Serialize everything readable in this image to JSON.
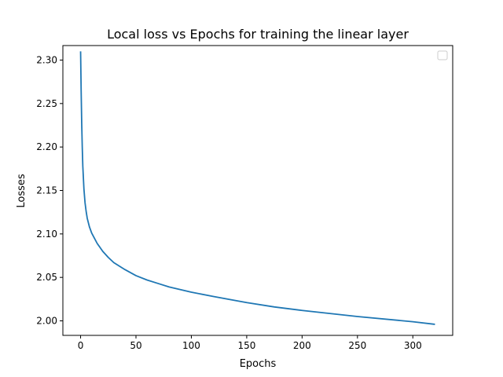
{
  "chart_data": {
    "type": "line",
    "title": "Local loss vs Epochs for training the linear layer",
    "xlabel": "Epochs",
    "ylabel": "Losses",
    "xlim": [
      -16,
      336
    ],
    "ylim": [
      1.9833,
      2.3167
    ],
    "xticks": [
      0,
      50,
      100,
      150,
      200,
      250,
      300
    ],
    "xtick_labels": [
      "0",
      "50",
      "100",
      "150",
      "200",
      "250",
      "300"
    ],
    "yticks": [
      2.0,
      2.05,
      2.1,
      2.15,
      2.2,
      2.25,
      2.3
    ],
    "ytick_labels": [
      "2.00",
      "2.05",
      "2.10",
      "2.15",
      "2.20",
      "2.25",
      "2.30"
    ],
    "grid": false,
    "legend": {
      "placement": "top-right",
      "entries": []
    },
    "series": [
      {
        "color": "#1f77b4",
        "x": [
          0,
          0.5,
          1,
          1.5,
          2,
          3,
          4,
          5,
          6,
          8,
          10,
          15,
          20,
          25,
          30,
          40,
          50,
          60,
          70,
          80,
          100,
          120,
          150,
          175,
          200,
          250,
          300,
          320
        ],
        "y": [
          2.31,
          2.265,
          2.228,
          2.2,
          2.178,
          2.152,
          2.136,
          2.126,
          2.118,
          2.108,
          2.101,
          2.089,
          2.08,
          2.073,
          2.067,
          2.059,
          2.052,
          2.047,
          2.043,
          2.039,
          2.033,
          2.028,
          2.021,
          2.016,
          2.012,
          2.005,
          1.999,
          1.996
        ]
      }
    ]
  }
}
